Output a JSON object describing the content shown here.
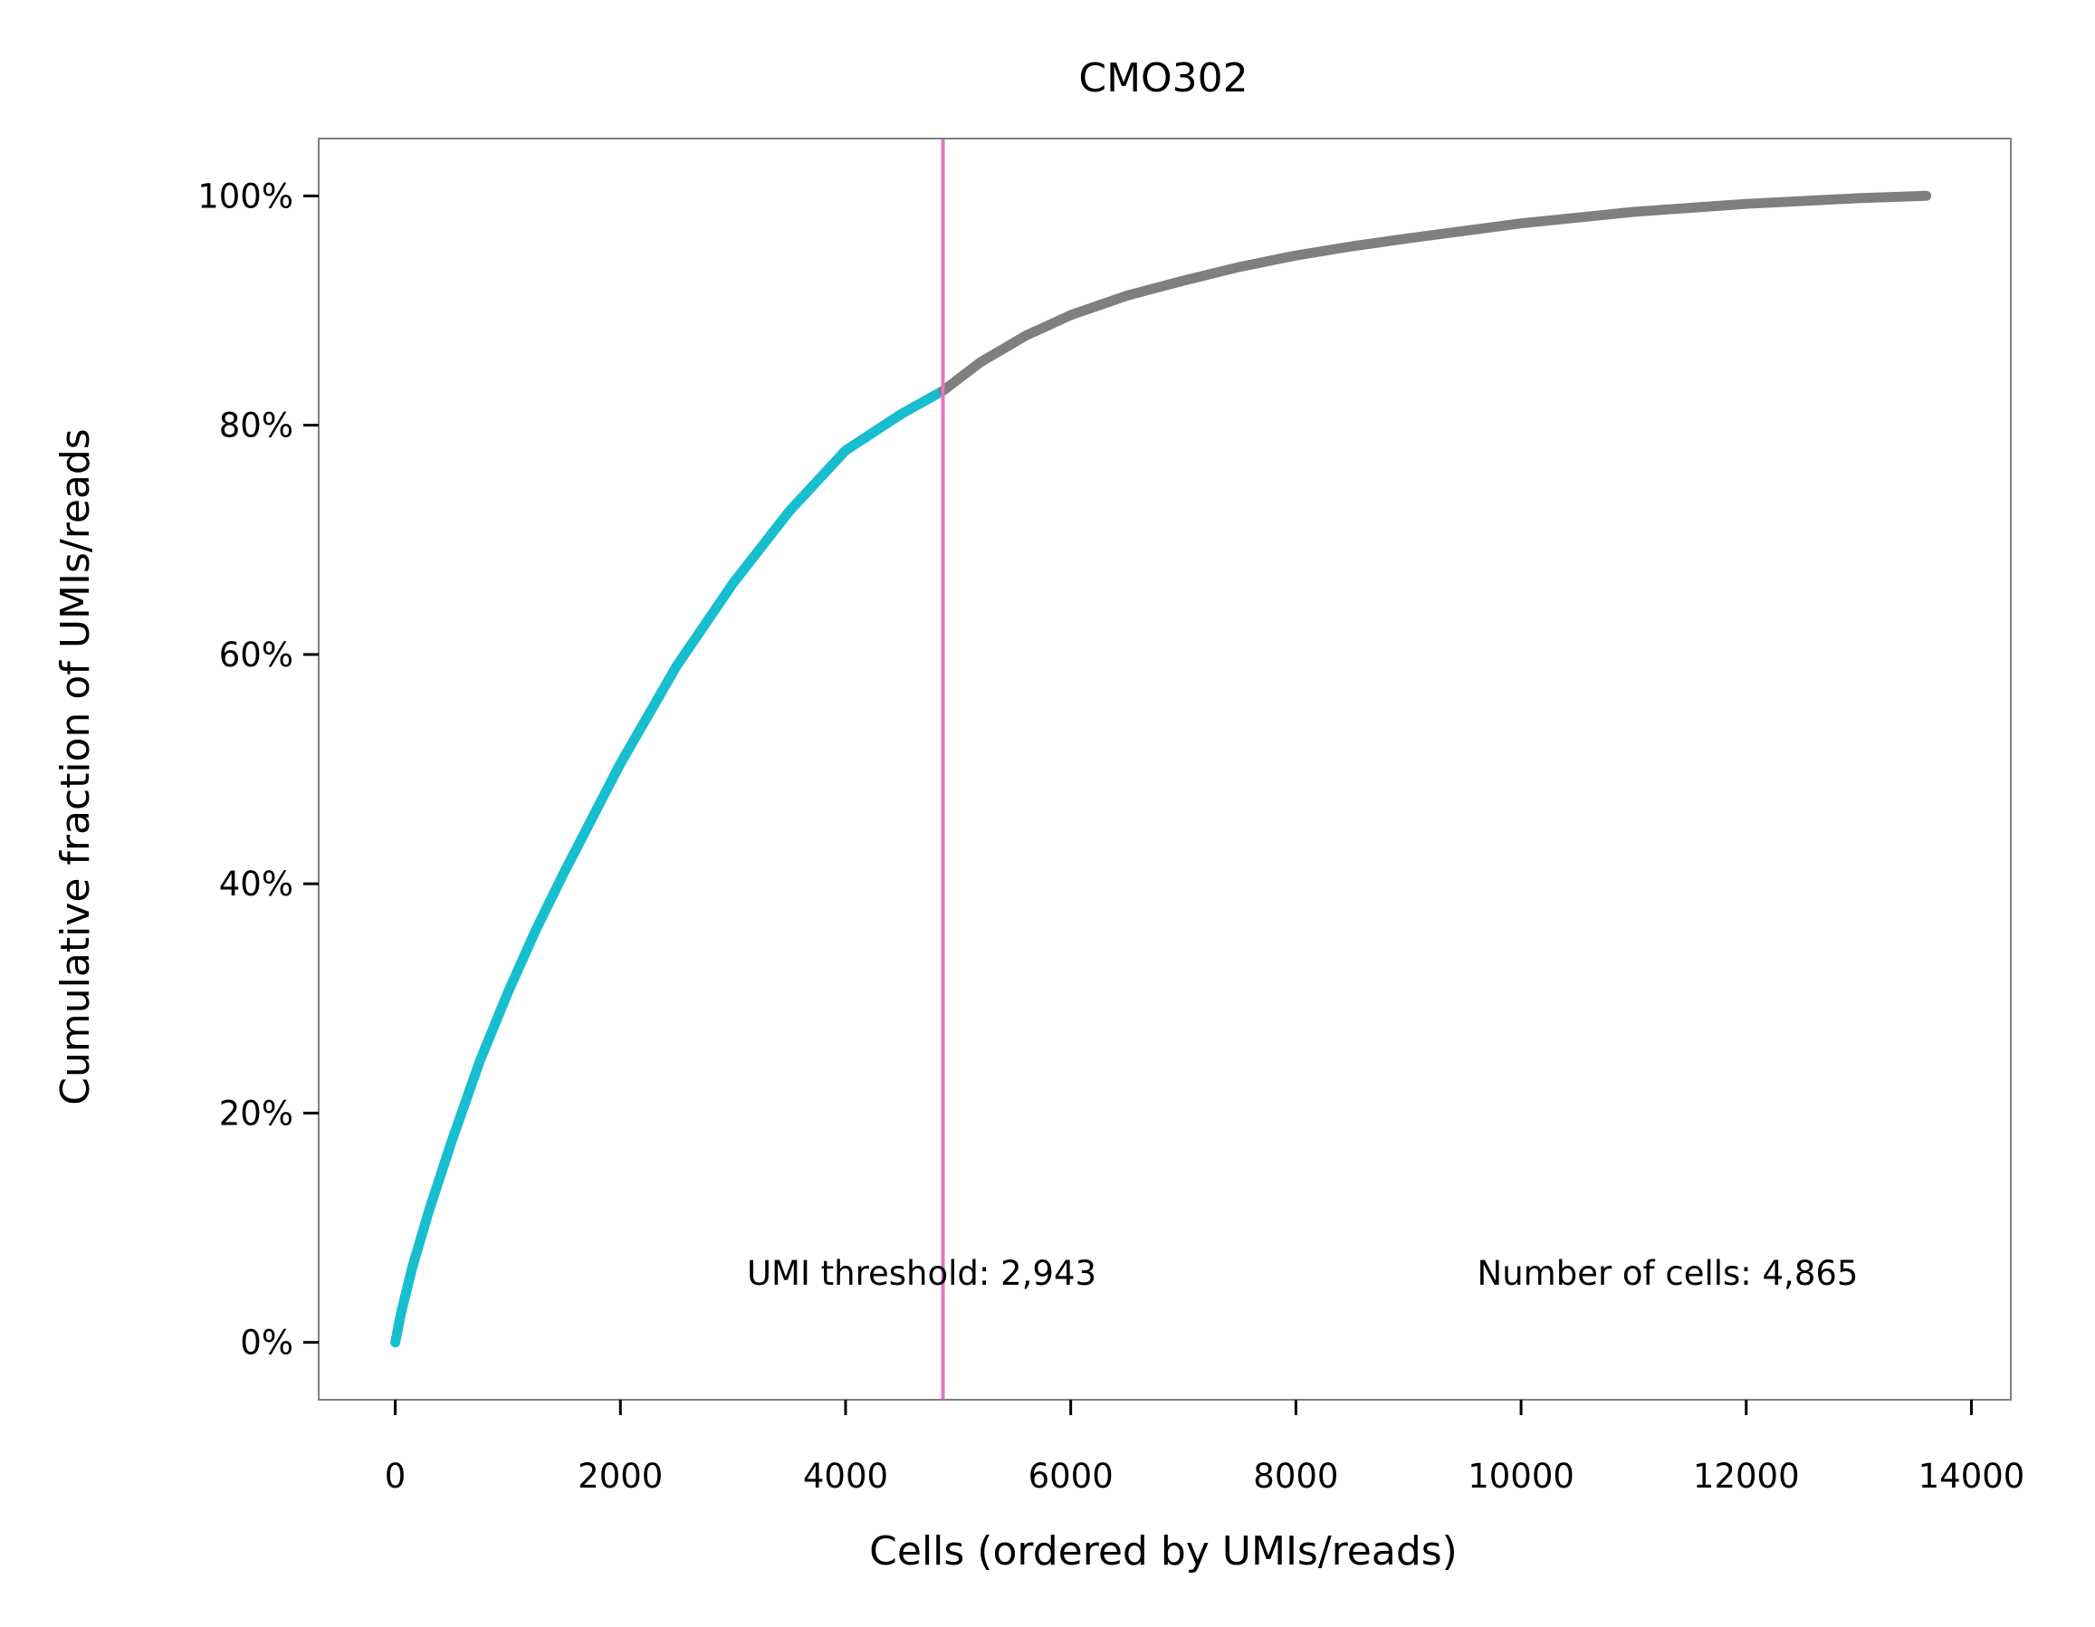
{
  "chart_data": {
    "type": "line",
    "title": "CMO302",
    "xlabel": "Cells (ordered by UMIs/reads)",
    "ylabel": "Cumulative fraction of UMIs/reads",
    "xlim": [
      -680,
      14350
    ],
    "ylim": [
      -0.05,
      1.05
    ],
    "x_ticks": [
      0,
      2000,
      4000,
      6000,
      8000,
      10000,
      12000,
      14000
    ],
    "x_tick_labels": [
      "0",
      "2000",
      "4000",
      "6000",
      "8000",
      "10000",
      "12000",
      "14000"
    ],
    "y_ticks": [
      0,
      0.2,
      0.4,
      0.6,
      0.8,
      1.0
    ],
    "y_tick_labels": [
      "0%",
      "20%",
      "40%",
      "60%",
      "80%",
      "100%"
    ],
    "grid": false,
    "threshold_x": 4865,
    "colors": {
      "cells": "#17becf",
      "background": "#7f7f7f",
      "threshold": "#e377c2",
      "frame": "#808080"
    },
    "series": [
      {
        "x": [
          0,
          50,
          150,
          300,
          500,
          750,
          1000,
          1250,
          1500,
          2000,
          2500,
          3000,
          3500,
          4000,
          4500,
          4865
        ],
        "y": [
          0.0,
          0.025,
          0.065,
          0.115,
          0.175,
          0.245,
          0.305,
          0.36,
          0.41,
          0.505,
          0.59,
          0.662,
          0.725,
          0.778,
          0.81,
          0.83
        ]
      },
      {
        "x": [
          4865,
          5200,
          5600,
          6000,
          6500,
          7000,
          7500,
          8000,
          8500,
          9000,
          10000,
          11000,
          12000,
          13000,
          13600
        ],
        "y": [
          0.83,
          0.855,
          0.878,
          0.896,
          0.913,
          0.926,
          0.938,
          0.948,
          0.956,
          0.963,
          0.976,
          0.986,
          0.993,
          0.998,
          1.0
        ]
      }
    ],
    "annotations": [
      {
        "text": "UMI threshold: 2,943"
      },
      {
        "text": "Number of cells: 4,865"
      }
    ]
  }
}
